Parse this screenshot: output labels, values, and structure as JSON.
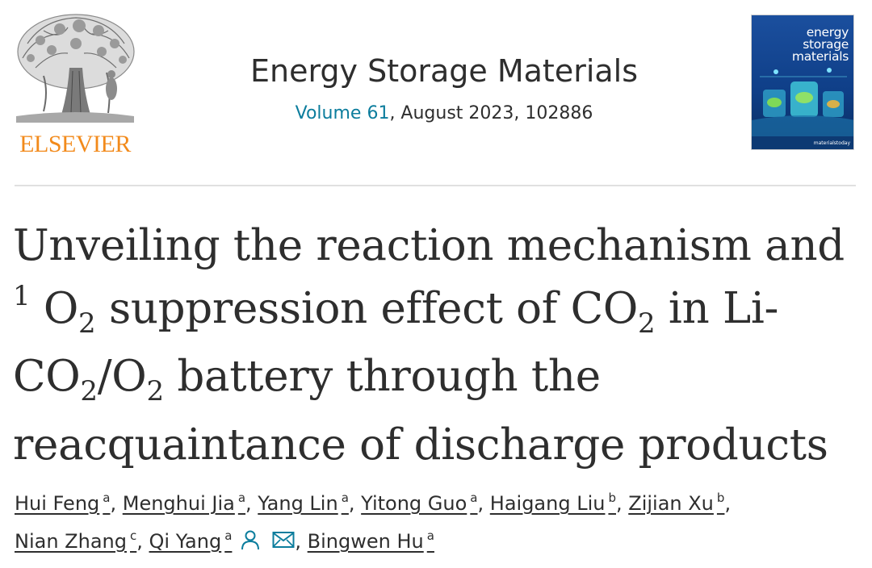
{
  "publisher": {
    "name": "ELSEVIER",
    "logo_icon": "elsevier-tree-icon",
    "name_color": "#f28a1b"
  },
  "journal": {
    "name": "Energy Storage Materials",
    "volume_link": "Volume 61",
    "issue_info": ", August 2023, 102886",
    "link_color": "#0c7d9d"
  },
  "cover": {
    "title_lines": [
      "energy",
      "storage",
      "materials"
    ],
    "footer": "materialstoday",
    "background_color": "#0f3f88"
  },
  "article": {
    "title": {
      "line1": "Unveiling the reaction mechanism and",
      "line2_sup": "1",
      "line2_a": " O",
      "line2_sub_a": "2",
      "line2_b": " suppression effect of CO",
      "line2_sub_b": "2",
      "line2_c": " in Li-",
      "line3_a": "CO",
      "line3_sub_a": "2",
      "line3_b": "/O",
      "line3_sub_b": "2",
      "line3_c": " battery through the",
      "line4": "reacquaintance of discharge products"
    }
  },
  "authors": {
    "list": [
      {
        "name": "Hui Feng",
        "aff": "a"
      },
      {
        "name": "Menghui Jia",
        "aff": "a"
      },
      {
        "name": "Yang Lin",
        "aff": "a"
      },
      {
        "name": "Yitong Guo",
        "aff": "a"
      },
      {
        "name": "Haigang Liu",
        "aff": "b"
      },
      {
        "name": "Zijian Xu",
        "aff": "b"
      },
      {
        "name": "Nian Zhang",
        "aff": "c"
      },
      {
        "name": "Qi Yang",
        "aff": "a"
      },
      {
        "name": "Bingwen Hu",
        "aff": "a"
      }
    ],
    "separator": ", ",
    "icons": [
      "person-icon",
      "envelope-icon"
    ],
    "icon_color": "#0c7d9d"
  }
}
